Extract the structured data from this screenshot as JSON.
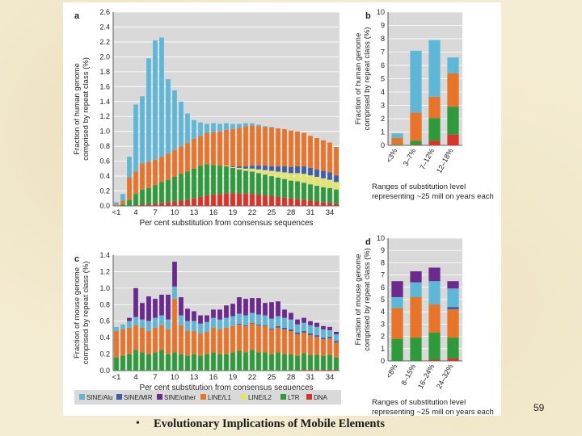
{
  "slide": {
    "bullet": "•",
    "footer": "Evolutionary Implications of Mobile Elements",
    "page_number": "59"
  },
  "colors": {
    "SINE/Alu": "#5fb7d8",
    "SINE/MIR": "#3b5fa8",
    "SINE/other": "#6b2a8c",
    "LINE/L1": "#e8742a",
    "LINE/L2": "#e6e65a",
    "LTR": "#2e9a3a",
    "DNA": "#d9332a",
    "background": "#d9d9d9"
  },
  "legend": [
    {
      "name": "SINE/Alu",
      "color": "#5fb7d8"
    },
    {
      "name": "SINE/MIR",
      "color": "#3b5fa8"
    },
    {
      "name": "SINE/other",
      "color": "#6b2a8c"
    },
    {
      "name": "LINE/L1",
      "color": "#e8742a"
    },
    {
      "name": "LINE/L2",
      "color": "#e6e65a"
    },
    {
      "name": "LTR",
      "color": "#2e9a3a"
    },
    {
      "name": "DNA",
      "color": "#d9332a"
    }
  ],
  "chart_data": [
    {
      "panel": "a",
      "type": "bar",
      "stacked": true,
      "ylabel": "Fraction of human genome comprised by repeat class (%)",
      "xlabel": "Per cent substitution from consensus sequences",
      "ylim": [
        0,
        2.6
      ],
      "yticks": [
        "0.0",
        "0.2",
        "0.4",
        "0.6",
        "0.8",
        "1.0",
        "1.2",
        "1.4",
        "1.6",
        "1.8",
        "2.0",
        "2.2",
        "2.4",
        "2.6"
      ],
      "xticks": [
        "<1",
        "4",
        "7",
        "10",
        "13",
        "16",
        "19",
        "22",
        "25",
        "28",
        "31",
        "34"
      ],
      "x": [
        "<1",
        "2",
        "3",
        "4",
        "5",
        "6",
        "7",
        "8",
        "9",
        "10",
        "11",
        "12",
        "13",
        "14",
        "15",
        "16",
        "17",
        "18",
        "19",
        "20",
        "21",
        "22",
        "23",
        "24",
        "25",
        "26",
        "27",
        "28",
        "29",
        "30",
        "31",
        "32",
        "33",
        "34",
        "35"
      ],
      "series": [
        {
          "name": "DNA",
          "values": [
            0,
            0,
            0,
            0.01,
            0.02,
            0.02,
            0.03,
            0.04,
            0.05,
            0.06,
            0.07,
            0.08,
            0.1,
            0.12,
            0.14,
            0.15,
            0.16,
            0.17,
            0.17,
            0.17,
            0.17,
            0.16,
            0.15,
            0.14,
            0.13,
            0.12,
            0.11,
            0.1,
            0.09,
            0.08,
            0.07,
            0.06,
            0.05,
            0.04,
            0.03
          ]
        },
        {
          "name": "LTR",
          "values": [
            0,
            0.02,
            0.08,
            0.15,
            0.2,
            0.22,
            0.25,
            0.28,
            0.3,
            0.33,
            0.36,
            0.38,
            0.4,
            0.42,
            0.42,
            0.4,
            0.38,
            0.36,
            0.34,
            0.32,
            0.3,
            0.3,
            0.29,
            0.28,
            0.27,
            0.26,
            0.25,
            0.24,
            0.24,
            0.23,
            0.22,
            0.21,
            0.2,
            0.2,
            0.19
          ]
        },
        {
          "name": "LINE/L2",
          "values": [
            0,
            0,
            0,
            0,
            0,
            0,
            0,
            0,
            0,
            0,
            0,
            0,
            0,
            0,
            0,
            0,
            0,
            0.01,
            0.01,
            0.02,
            0.03,
            0.04,
            0.05,
            0.06,
            0.07,
            0.08,
            0.09,
            0.1,
            0.11,
            0.12,
            0.12,
            0.12,
            0.12,
            0.11,
            0.1
          ]
        },
        {
          "name": "SINE/MIR",
          "values": [
            0,
            0,
            0,
            0,
            0,
            0,
            0,
            0,
            0,
            0,
            0,
            0,
            0,
            0,
            0,
            0,
            0,
            0,
            0.01,
            0.02,
            0.03,
            0.04,
            0.05,
            0.06,
            0.06,
            0.07,
            0.08,
            0.08,
            0.09,
            0.1,
            0.1,
            0.1,
            0.1,
            0.1,
            0.09
          ]
        },
        {
          "name": "LINE/L1",
          "values": [
            0.02,
            0.05,
            0.3,
            0.3,
            0.35,
            0.35,
            0.34,
            0.34,
            0.35,
            0.36,
            0.37,
            0.38,
            0.4,
            0.4,
            0.42,
            0.44,
            0.46,
            0.48,
            0.5,
            0.52,
            0.54,
            0.54,
            0.53,
            0.52,
            0.52,
            0.51,
            0.5,
            0.49,
            0.47,
            0.45,
            0.43,
            0.42,
            0.41,
            0.4,
            0.38
          ]
        },
        {
          "name": "SINE/Alu",
          "values": [
            0.03,
            0.09,
            0.28,
            0.9,
            0.9,
            1.39,
            1.6,
            1.6,
            1.0,
            0.8,
            0.6,
            0.4,
            0.25,
            0.18,
            0.12,
            0.12,
            0.1,
            0.09,
            0.07,
            0.05,
            0.04,
            0.03,
            0.02,
            0.01,
            0.01,
            0,
            0,
            0,
            0,
            0,
            0,
            0,
            0,
            0,
            0
          ]
        }
      ]
    },
    {
      "panel": "b",
      "type": "bar",
      "stacked": true,
      "ylabel": "Fraction of human genome comprised by repeat class (%)",
      "xlabel": "Ranges of substitution level representing ~25 mill on years each",
      "ylim": [
        0,
        10
      ],
      "yticks": [
        "0",
        "1",
        "2",
        "3",
        "4",
        "5",
        "6",
        "7",
        "8",
        "9",
        "10"
      ],
      "categories": [
        "<3%",
        "3–7%",
        "7–12%",
        "12–18%"
      ],
      "series": [
        {
          "name": "DNA",
          "values": [
            0,
            0.05,
            0.35,
            0.8
          ]
        },
        {
          "name": "LTR",
          "values": [
            0.05,
            0.3,
            1.7,
            2.1
          ]
        },
        {
          "name": "LINE/L1",
          "values": [
            0.5,
            2.1,
            1.6,
            2.5
          ]
        },
        {
          "name": "SINE/other",
          "values": [
            0,
            0,
            0,
            0
          ]
        },
        {
          "name": "SINE/Alu",
          "values": [
            0.35,
            4.65,
            4.25,
            1.2
          ]
        }
      ]
    },
    {
      "panel": "c",
      "type": "bar",
      "stacked": true,
      "ylabel": "Fraction of mouse genome comprised by repeat class (%)",
      "xlabel": "Per cent substitution from consensus sequences",
      "ylim": [
        0,
        1.4
      ],
      "yticks": [
        "0.0",
        "0.2",
        "0.4",
        "0.6",
        "0.8",
        "1.0",
        "1.2",
        "1.4"
      ],
      "xticks": [
        "<1",
        "4",
        "7",
        "10",
        "13",
        "16",
        "19",
        "22",
        "25",
        "28",
        "31",
        "34"
      ],
      "x": [
        "<1",
        "2",
        "3",
        "4",
        "5",
        "6",
        "7",
        "8",
        "9",
        "10",
        "11",
        "12",
        "13",
        "14",
        "15",
        "16",
        "17",
        "18",
        "19",
        "20",
        "21",
        "22",
        "23",
        "24",
        "25",
        "26",
        "27",
        "28",
        "29",
        "30",
        "31",
        "32",
        "33",
        "34",
        "35"
      ],
      "series": [
        {
          "name": "DNA",
          "values": [
            0,
            0,
            0,
            0,
            0,
            0,
            0,
            0,
            0,
            0,
            0,
            0,
            0,
            0,
            0,
            0,
            0,
            0,
            0,
            0,
            0,
            0,
            0,
            0,
            0,
            0,
            0,
            0,
            0,
            0.01,
            0.01,
            0.01,
            0.01,
            0.01,
            0.01
          ]
        },
        {
          "name": "LTR",
          "values": [
            0.16,
            0.18,
            0.2,
            0.25,
            0.22,
            0.2,
            0.22,
            0.25,
            0.2,
            0.22,
            0.2,
            0.18,
            0.2,
            0.18,
            0.2,
            0.22,
            0.2,
            0.2,
            0.22,
            0.24,
            0.22,
            0.25,
            0.22,
            0.22,
            0.2,
            0.22,
            0.2,
            0.2,
            0.18,
            0.2,
            0.18,
            0.18,
            0.17,
            0.18,
            0.15
          ]
        },
        {
          "name": "LINE/L1",
          "values": [
            0.32,
            0.32,
            0.32,
            0.3,
            0.3,
            0.28,
            0.3,
            0.3,
            0.3,
            0.65,
            0.35,
            0.3,
            0.28,
            0.27,
            0.27,
            0.3,
            0.3,
            0.32,
            0.32,
            0.32,
            0.32,
            0.32,
            0.33,
            0.32,
            0.3,
            0.3,
            0.3,
            0.28,
            0.26,
            0.25,
            0.24,
            0.22,
            0.2,
            0.2,
            0.18
          ]
        },
        {
          "name": "SINE/MIR",
          "values": [
            0,
            0,
            0,
            0,
            0,
            0,
            0,
            0,
            0,
            0,
            0,
            0,
            0,
            0,
            0,
            0,
            0,
            0,
            0,
            0.01,
            0.01,
            0.01,
            0.01,
            0.01,
            0.01,
            0.02,
            0.02,
            0.02,
            0.02,
            0.02,
            0.02,
            0.02,
            0.02,
            0.02,
            0.02
          ]
        },
        {
          "name": "SINE/Alu",
          "values": [
            0.05,
            0.06,
            0.08,
            0.1,
            0.1,
            0.12,
            0.12,
            0.12,
            0.12,
            0.15,
            0.12,
            0.12,
            0.12,
            0.12,
            0.12,
            0.12,
            0.12,
            0.12,
            0.12,
            0.12,
            0.12,
            0.12,
            0.12,
            0.12,
            0.12,
            0.12,
            0.12,
            0.12,
            0.1,
            0.1,
            0.1,
            0.1,
            0.1,
            0.08,
            0.08
          ]
        },
        {
          "name": "SINE/other",
          "values": [
            0,
            0,
            0.04,
            0.35,
            0.2,
            0.3,
            0.23,
            0.25,
            0.3,
            0.3,
            0.22,
            0.15,
            0.12,
            0.1,
            0.08,
            0.1,
            0.12,
            0.15,
            0.15,
            0.2,
            0.2,
            0.18,
            0.2,
            0.15,
            0.2,
            0.18,
            0.1,
            0.08,
            0.06,
            0.06,
            0.05,
            0.05,
            0.04,
            0.04,
            0.03
          ]
        }
      ]
    },
    {
      "panel": "d",
      "type": "bar",
      "stacked": true,
      "ylabel": "Fraction of mouse genome comprised by repeat class (%)",
      "xlabel": "Ranges of substitution level representing ~25 mill on years each",
      "ylim": [
        0,
        10
      ],
      "yticks": [
        "0",
        "1",
        "2",
        "3",
        "4",
        "5",
        "6",
        "7",
        "8",
        "9",
        "10"
      ],
      "categories": [
        "<8%",
        "8–15%",
        "16–24%",
        "24–32%"
      ],
      "series": [
        {
          "name": "DNA",
          "values": [
            0,
            0,
            0.1,
            0.2
          ]
        },
        {
          "name": "LTR",
          "values": [
            1.8,
            1.9,
            2.2,
            1.7
          ]
        },
        {
          "name": "LINE/L1",
          "values": [
            2.5,
            3.3,
            2.3,
            2.3
          ]
        },
        {
          "name": "SINE/MIR",
          "values": [
            0,
            0,
            0,
            0.2
          ]
        },
        {
          "name": "SINE/Alu",
          "values": [
            0.9,
            1.2,
            1.9,
            1.5
          ]
        },
        {
          "name": "SINE/other",
          "values": [
            1.3,
            0.9,
            1.1,
            0.6
          ]
        }
      ]
    }
  ],
  "panels": {
    "a": {
      "letter": "a",
      "ylabel_lines": [
        "Fraction of human genome",
        "comprised by repeat class (%)"
      ],
      "xlabel": "Per cent substitution from consensus sequences"
    },
    "b": {
      "letter": "b",
      "ylabel_lines": [
        "Fraction of human genome",
        "comprised by repeat class (%)"
      ],
      "xlabel_lines": [
        "Ranges of substitution level",
        "representing ~25 mill on years each"
      ]
    },
    "c": {
      "letter": "c",
      "ylabel_lines": [
        "Fraction of mouse genome",
        "comprised by repeat class (%)"
      ],
      "xlabel": "Per cent substitution from consensus sequences"
    },
    "d": {
      "letter": "d",
      "ylabel_lines": [
        "Fraction of mouse genome",
        "comprised by repeat class (%)"
      ],
      "xlabel_lines": [
        "Ranges of substitution level",
        "representing ~25 mill on years each"
      ]
    }
  }
}
